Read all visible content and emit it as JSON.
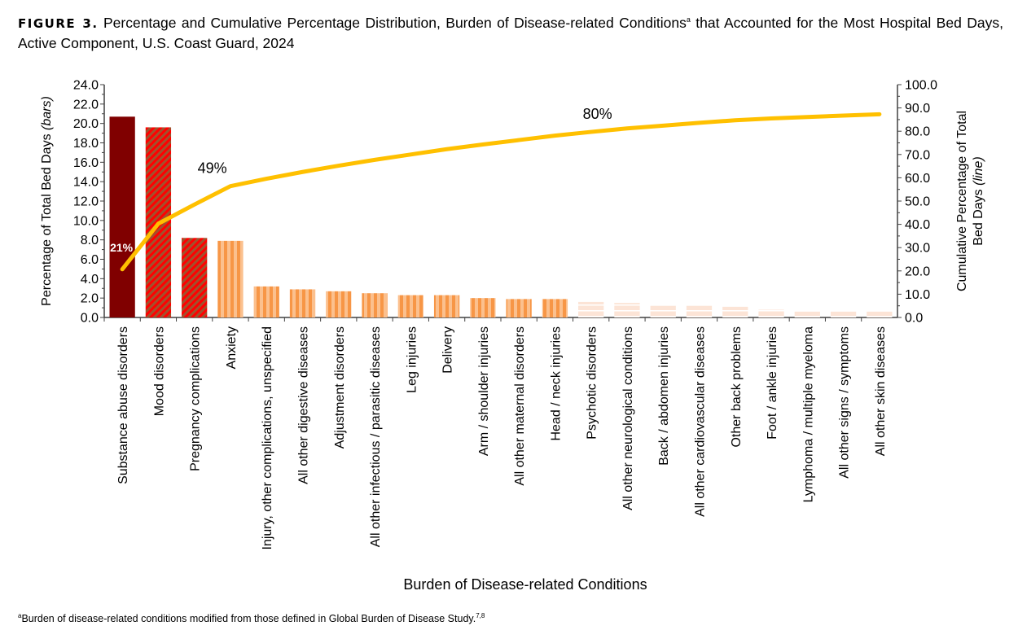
{
  "figure_label": "FIGURE 3.",
  "title_text": "Percentage and Cumulative Percentage Distribution, Burden of Disease-related Conditions",
  "title_sup": "a",
  "title_rest": " that Accounted for the Most Hospital Bed Days, Active Component, U.S. Coast Guard, 2024",
  "footnote": {
    "mark": "a",
    "text": "Burden of disease-related conditions modified from those defined in Global Burden of Disease Study.",
    "refs": "7,8"
  },
  "chart_data": {
    "type": "bar",
    "xlabel": "Burden of Disease-related Conditions",
    "ylabel": "Percentage of Total Bed Days",
    "ylabel_italic": "(bars)",
    "y2label_line1": "Cumulative Percentage of Total",
    "y2label_line2": "Bed Days",
    "y2label_italic": "(line)",
    "ylim": [
      0,
      24
    ],
    "y2lim": [
      0,
      100
    ],
    "yticks": [
      "0.0",
      "2.0",
      "4.0",
      "6.0",
      "8.0",
      "10.0",
      "12.0",
      "14.0",
      "16.0",
      "18.0",
      "20.0",
      "22.0",
      "24.0"
    ],
    "y2ticks": [
      "0.0",
      "10.0",
      "20.0",
      "30.0",
      "40.0",
      "50.0",
      "60.0",
      "70.0",
      "80.0",
      "90.0",
      "100.0"
    ],
    "grid": false,
    "categories": [
      "Substance abuse disorders",
      "Mood disorders",
      "Pregnancy complications",
      "Anxiety",
      "Injury, other complications, unspecified",
      "All other digestive diseases",
      "Adjustment disorders",
      "All other infectious / parasitic diseases",
      "Leg injuries",
      "Delivery",
      "Arm / shoulder injuries",
      "All other maternal disorders",
      "Head / neck injuries",
      "Psychotic disorders",
      "All other neurological conditions",
      "Back / abdomen injuries",
      "All other cardiovascular diseases",
      "Other back problems",
      "Foot / ankle injuries",
      "Lymphoma / multiple myeloma",
      "All other signs / symptoms",
      "All other skin diseases"
    ],
    "series": [
      {
        "type": "bar",
        "values": [
          20.7,
          19.6,
          8.2,
          7.9,
          3.2,
          2.9,
          2.7,
          2.5,
          2.3,
          2.3,
          2.0,
          1.9,
          1.9,
          1.6,
          1.5,
          1.2,
          1.2,
          1.1,
          0.8,
          0.6,
          0.6,
          0.6
        ]
      },
      {
        "type": "line",
        "axis": "right",
        "color": "#ffc000",
        "values": [
          20.7,
          40.3,
          48.5,
          56.4,
          59.6,
          62.5,
          65.2,
          67.7,
          70.0,
          72.3,
          74.3,
          76.2,
          78.1,
          79.7,
          81.2,
          82.4,
          83.6,
          84.7,
          85.5,
          86.1,
          86.7,
          87.3
        ]
      }
    ],
    "bar_styles": [
      "solid-darkred",
      "red-hatch",
      "red-hatch",
      "orange-stripes",
      "orange-stripes",
      "orange-stripes",
      "orange-stripes",
      "orange-stripes",
      "orange-stripes",
      "orange-stripes",
      "orange-stripes",
      "orange-stripes",
      "orange-stripes",
      "peach-lines",
      "peach-lines",
      "peach-lines",
      "peach-lines",
      "peach-lines",
      "peach-lines",
      "peach-lines",
      "peach-lines",
      "peach-lines"
    ],
    "annotations": [
      {
        "text": "21%",
        "index": 0
      },
      {
        "text": "49%",
        "index": 2
      },
      {
        "text": "80%",
        "index": 13
      }
    ],
    "colors": {
      "dark_red": "#800000",
      "red": "#ff0000",
      "brown": "#a0522d",
      "orange": "#f79646",
      "light_orange": "#fbc08e",
      "peach": "#fce4d6",
      "line": "#ffc000"
    }
  }
}
